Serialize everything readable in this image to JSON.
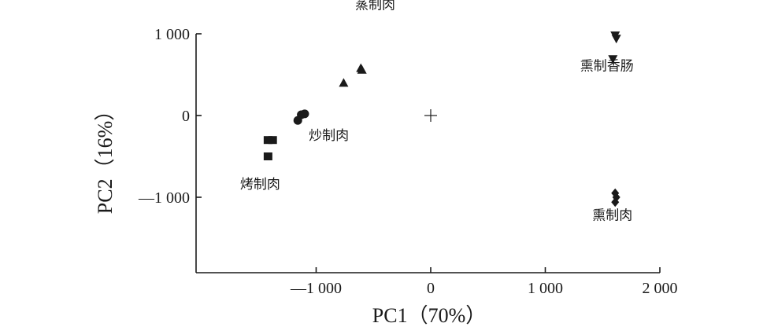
{
  "chart_data": {
    "type": "scatter",
    "title": "",
    "xlabel": "PC1（70%）",
    "ylabel": "PC2（16%）",
    "xlim": [
      -2050,
      2000
    ],
    "ylim": [
      -1950,
      1000
    ],
    "xticks": [
      {
        "value": -1000,
        "label": "—1 000"
      },
      {
        "value": 0,
        "label": "0"
      },
      {
        "value": 1000,
        "label": "1 000"
      },
      {
        "value": 2000,
        "label": "2 000"
      }
    ],
    "yticks": [
      {
        "value": 1000,
        "label": "1 000"
      },
      {
        "value": 0,
        "label": "0"
      },
      {
        "value": -1000,
        "label": "—1 000"
      }
    ],
    "origin_marker": "+",
    "grid": false,
    "legend": "none",
    "color": "#1a1a1a",
    "series": [
      {
        "name": "蒸制肉",
        "marker": "triangle-up",
        "points": [
          [
            -760,
            400
          ],
          [
            -610,
            580
          ],
          [
            -600,
            560
          ]
        ]
      },
      {
        "name": "熏制香肠",
        "marker": "triangle-down",
        "points": [
          [
            1610,
            980
          ],
          [
            1620,
            940
          ],
          [
            1590,
            690
          ]
        ]
      },
      {
        "name": "炒制肉",
        "marker": "circle",
        "points": [
          [
            -1100,
            20
          ],
          [
            -1130,
            10
          ],
          [
            -1160,
            -60
          ]
        ]
      },
      {
        "name": "烤制肉",
        "marker": "square",
        "points": [
          [
            -1420,
            -300
          ],
          [
            -1380,
            -300
          ],
          [
            -1420,
            -500
          ]
        ]
      },
      {
        "name": "熏制肉",
        "marker": "diamond",
        "points": [
          [
            1610,
            -950
          ],
          [
            1620,
            -1000
          ],
          [
            1610,
            -1060
          ]
        ]
      }
    ]
  }
}
